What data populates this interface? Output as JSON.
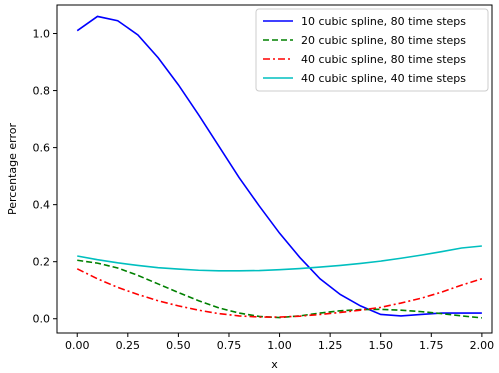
{
  "chart_data": {
    "type": "line",
    "title": "",
    "xlabel": "x",
    "ylabel": "Percentage error",
    "xlim": [
      -0.1,
      2.05
    ],
    "ylim": [
      -0.05,
      1.1
    ],
    "grid": false,
    "legend_position": "top-right",
    "x_ticks": [
      0.0,
      0.25,
      0.5,
      0.75,
      1.0,
      1.25,
      1.5,
      1.75,
      2.0
    ],
    "x_tick_labels": [
      "0.00",
      "0.25",
      "0.50",
      "0.75",
      "1.00",
      "1.25",
      "1.50",
      "1.75",
      "2.00"
    ],
    "y_ticks": [
      0.0,
      0.2,
      0.4,
      0.6,
      0.8,
      1.0
    ],
    "y_tick_labels": [
      "0.0",
      "0.2",
      "0.4",
      "0.6",
      "0.8",
      "1.0"
    ],
    "x": [
      0.0,
      0.1,
      0.2,
      0.3,
      0.4,
      0.5,
      0.6,
      0.7,
      0.8,
      0.9,
      1.0,
      1.1,
      1.2,
      1.3,
      1.4,
      1.5,
      1.6,
      1.7,
      1.8,
      1.9,
      2.0
    ],
    "series": [
      {
        "name": "10 cubic spline, 80 time steps",
        "color": "#0000ff",
        "dash": "solid",
        "values": [
          1.01,
          1.06,
          1.045,
          0.995,
          0.915,
          0.82,
          0.715,
          0.605,
          0.495,
          0.395,
          0.3,
          0.215,
          0.14,
          0.085,
          0.045,
          0.015,
          0.01,
          0.015,
          0.02,
          0.02,
          0.02
        ]
      },
      {
        "name": "20 cubic spline, 80 time steps",
        "color": "#008000",
        "dash": "dashed",
        "values": [
          0.205,
          0.195,
          0.178,
          0.152,
          0.122,
          0.092,
          0.063,
          0.038,
          0.02,
          0.008,
          0.004,
          0.01,
          0.02,
          0.028,
          0.032,
          0.033,
          0.03,
          0.025,
          0.018,
          0.01,
          0.003
        ]
      },
      {
        "name": "40 cubic spline, 80 time steps",
        "color": "#ff0000",
        "dash": "dashdot",
        "values": [
          0.175,
          0.14,
          0.11,
          0.085,
          0.063,
          0.045,
          0.03,
          0.018,
          0.01,
          0.006,
          0.006,
          0.009,
          0.015,
          0.022,
          0.03,
          0.04,
          0.055,
          0.072,
          0.093,
          0.118,
          0.14
        ]
      },
      {
        "name": "40 cubic spline, 40 time steps",
        "color": "#00bfbf",
        "dash": "solid",
        "values": [
          0.22,
          0.207,
          0.196,
          0.187,
          0.179,
          0.174,
          0.17,
          0.168,
          0.168,
          0.169,
          0.172,
          0.176,
          0.181,
          0.187,
          0.194,
          0.202,
          0.212,
          0.223,
          0.235,
          0.248,
          0.255
        ]
      }
    ]
  }
}
